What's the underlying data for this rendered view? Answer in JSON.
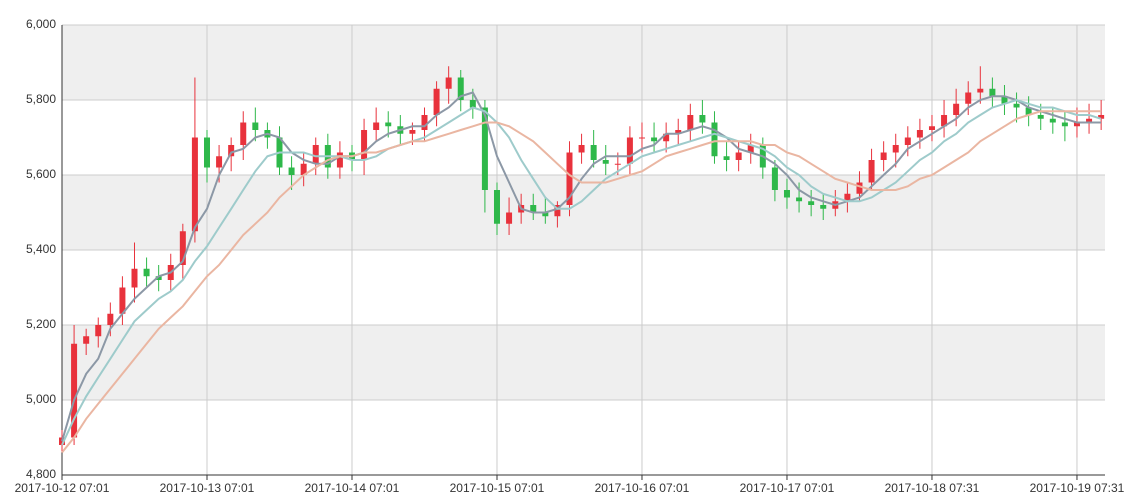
{
  "chart_data": {
    "type": "candlestick",
    "categories": [
      "2017-10-12 07:01",
      null,
      null,
      null,
      null,
      null,
      null,
      null,
      null,
      null,
      null,
      null,
      "2017-10-13 07:01",
      null,
      null,
      null,
      null,
      null,
      null,
      null,
      null,
      null,
      null,
      null,
      "2017-10-14 07:01",
      null,
      null,
      null,
      null,
      null,
      null,
      null,
      null,
      null,
      null,
      null,
      "2017-10-15 07:01",
      null,
      null,
      null,
      null,
      null,
      null,
      null,
      null,
      null,
      null,
      null,
      "2017-10-16 07:01",
      null,
      null,
      null,
      null,
      null,
      null,
      null,
      null,
      null,
      null,
      null,
      "2017-10-17 07:01",
      null,
      null,
      null,
      null,
      null,
      null,
      null,
      null,
      null,
      null,
      null,
      "2017-10-18 07:31",
      null,
      null,
      null,
      null,
      null,
      null,
      null,
      null,
      null,
      null,
      null,
      "2017-10-19 07:31",
      null,
      null
    ],
    "open": [
      4880,
      4900,
      5150,
      5170,
      5200,
      5230,
      5300,
      5350,
      5330,
      5320,
      5360,
      5450,
      5700,
      5620,
      5650,
      5680,
      5740,
      5720,
      5700,
      5620,
      5600,
      5630,
      5680,
      5620,
      5660,
      5640,
      5720,
      5740,
      5730,
      5710,
      5720,
      5760,
      5830,
      5860,
      5800,
      5780,
      5560,
      5470,
      5500,
      5520,
      5500,
      5490,
      5520,
      5660,
      5680,
      5640,
      5630,
      5630,
      5700,
      5700,
      5690,
      5710,
      5720,
      5760,
      5740,
      5650,
      5640,
      5660,
      5680,
      5620,
      5560,
      5540,
      5530,
      5520,
      5510,
      5530,
      5550,
      5580,
      5640,
      5660,
      5680,
      5700,
      5720,
      5730,
      5760,
      5790,
      5820,
      5830,
      5810,
      5790,
      5780,
      5760,
      5750,
      5740,
      5730,
      5740,
      5750
    ],
    "close": [
      4900,
      5150,
      5170,
      5200,
      5230,
      5300,
      5350,
      5330,
      5320,
      5360,
      5450,
      5700,
      5620,
      5650,
      5680,
      5740,
      5720,
      5700,
      5620,
      5600,
      5630,
      5680,
      5620,
      5660,
      5640,
      5720,
      5740,
      5730,
      5710,
      5720,
      5760,
      5830,
      5860,
      5800,
      5780,
      5560,
      5470,
      5500,
      5520,
      5500,
      5490,
      5520,
      5660,
      5680,
      5640,
      5630,
      5630,
      5700,
      5700,
      5690,
      5710,
      5720,
      5760,
      5740,
      5650,
      5640,
      5660,
      5680,
      5620,
      5560,
      5540,
      5530,
      5520,
      5510,
      5530,
      5550,
      5580,
      5640,
      5660,
      5680,
      5700,
      5720,
      5730,
      5760,
      5790,
      5820,
      5830,
      5810,
      5790,
      5780,
      5760,
      5750,
      5740,
      5730,
      5740,
      5750,
      5760
    ],
    "low": [
      4860,
      4880,
      5120,
      5140,
      5170,
      5200,
      5260,
      5300,
      5290,
      5290,
      5320,
      5420,
      5580,
      5580,
      5610,
      5640,
      5690,
      5670,
      5600,
      5560,
      5570,
      5600,
      5590,
      5590,
      5610,
      5600,
      5690,
      5700,
      5680,
      5680,
      5690,
      5730,
      5790,
      5770,
      5750,
      5500,
      5440,
      5440,
      5470,
      5480,
      5470,
      5460,
      5490,
      5630,
      5620,
      5600,
      5600,
      5600,
      5660,
      5660,
      5660,
      5680,
      5690,
      5710,
      5630,
      5610,
      5610,
      5630,
      5590,
      5530,
      5510,
      5500,
      5490,
      5480,
      5490,
      5500,
      5530,
      5560,
      5610,
      5620,
      5650,
      5670,
      5690,
      5700,
      5730,
      5760,
      5790,
      5780,
      5760,
      5740,
      5730,
      5720,
      5710,
      5690,
      5700,
      5710,
      5720
    ],
    "high": [
      4920,
      5200,
      5190,
      5220,
      5260,
      5330,
      5420,
      5380,
      5360,
      5390,
      5470,
      5860,
      5720,
      5680,
      5700,
      5770,
      5780,
      5740,
      5730,
      5650,
      5660,
      5700,
      5710,
      5690,
      5680,
      5750,
      5780,
      5770,
      5760,
      5740,
      5780,
      5850,
      5890,
      5880,
      5830,
      5800,
      5580,
      5540,
      5550,
      5550,
      5540,
      5530,
      5690,
      5710,
      5720,
      5680,
      5660,
      5730,
      5740,
      5740,
      5740,
      5750,
      5790,
      5800,
      5770,
      5690,
      5690,
      5710,
      5700,
      5640,
      5590,
      5580,
      5560,
      5550,
      5560,
      5580,
      5610,
      5670,
      5690,
      5710,
      5730,
      5750,
      5760,
      5800,
      5830,
      5850,
      5890,
      5860,
      5840,
      5820,
      5810,
      5790,
      5780,
      5770,
      5780,
      5790,
      5800
    ],
    "up_color": "#e8323c",
    "down_color": "#2eb84a",
    "series": [
      {
        "color": "#8c98a6",
        "values": [
          4890,
          5000,
          5070,
          5110,
          5190,
          5230,
          5270,
          5300,
          5330,
          5340,
          5370,
          5460,
          5510,
          5600,
          5660,
          5670,
          5700,
          5710,
          5700,
          5660,
          5640,
          5630,
          5630,
          5650,
          5650,
          5660,
          5690,
          5710,
          5720,
          5730,
          5730,
          5760,
          5780,
          5810,
          5820,
          5760,
          5650,
          5580,
          5510,
          5500,
          5500,
          5510,
          5540,
          5590,
          5630,
          5650,
          5650,
          5650,
          5670,
          5680,
          5710,
          5710,
          5720,
          5730,
          5720,
          5700,
          5670,
          5660,
          5650,
          5630,
          5600,
          5560,
          5540,
          5530,
          5520,
          5530,
          5540,
          5570,
          5600,
          5630,
          5670,
          5690,
          5710,
          5730,
          5750,
          5780,
          5800,
          5810,
          5810,
          5800,
          5780,
          5770,
          5760,
          5750,
          5740,
          5740,
          5740
        ]
      },
      {
        "color": "#9ecbcb",
        "values": [
          4880,
          4950,
          5010,
          5060,
          5110,
          5160,
          5210,
          5240,
          5270,
          5290,
          5320,
          5370,
          5410,
          5460,
          5510,
          5560,
          5610,
          5650,
          5660,
          5660,
          5660,
          5650,
          5650,
          5650,
          5640,
          5640,
          5650,
          5670,
          5680,
          5690,
          5700,
          5720,
          5740,
          5760,
          5780,
          5770,
          5740,
          5700,
          5640,
          5590,
          5540,
          5510,
          5510,
          5530,
          5560,
          5590,
          5610,
          5630,
          5650,
          5660,
          5670,
          5680,
          5690,
          5700,
          5710,
          5700,
          5690,
          5680,
          5670,
          5650,
          5620,
          5600,
          5570,
          5550,
          5540,
          5530,
          5530,
          5540,
          5560,
          5580,
          5610,
          5640,
          5660,
          5690,
          5710,
          5740,
          5760,
          5780,
          5790,
          5800,
          5790,
          5780,
          5780,
          5770,
          5760,
          5760,
          5750
        ]
      },
      {
        "color": "#eab6a2",
        "values": [
          4860,
          4900,
          4950,
          4990,
          5030,
          5070,
          5110,
          5150,
          5190,
          5220,
          5250,
          5290,
          5330,
          5360,
          5400,
          5440,
          5470,
          5500,
          5540,
          5570,
          5600,
          5620,
          5640,
          5650,
          5650,
          5660,
          5660,
          5670,
          5680,
          5690,
          5690,
          5700,
          5710,
          5720,
          5730,
          5740,
          5740,
          5730,
          5710,
          5690,
          5660,
          5630,
          5600,
          5580,
          5580,
          5580,
          5590,
          5600,
          5610,
          5630,
          5650,
          5660,
          5670,
          5680,
          5690,
          5690,
          5690,
          5690,
          5680,
          5680,
          5660,
          5650,
          5630,
          5610,
          5590,
          5580,
          5570,
          5560,
          5560,
          5560,
          5570,
          5590,
          5600,
          5620,
          5640,
          5660,
          5690,
          5710,
          5730,
          5750,
          5760,
          5770,
          5770,
          5770,
          5770,
          5770,
          5770
        ]
      }
    ],
    "ylim": [
      4800,
      6000
    ],
    "yticks": [
      {
        "value": 4800,
        "label": "4,800"
      },
      {
        "value": 5000,
        "label": "5,000"
      },
      {
        "value": 5200,
        "label": "5,200"
      },
      {
        "value": 5400,
        "label": "5,400"
      },
      {
        "value": 5600,
        "label": "5,600"
      },
      {
        "value": 5800,
        "label": "5,800"
      },
      {
        "value": 6000,
        "label": "6,000"
      }
    ],
    "split_area": true,
    "grid": true
  }
}
